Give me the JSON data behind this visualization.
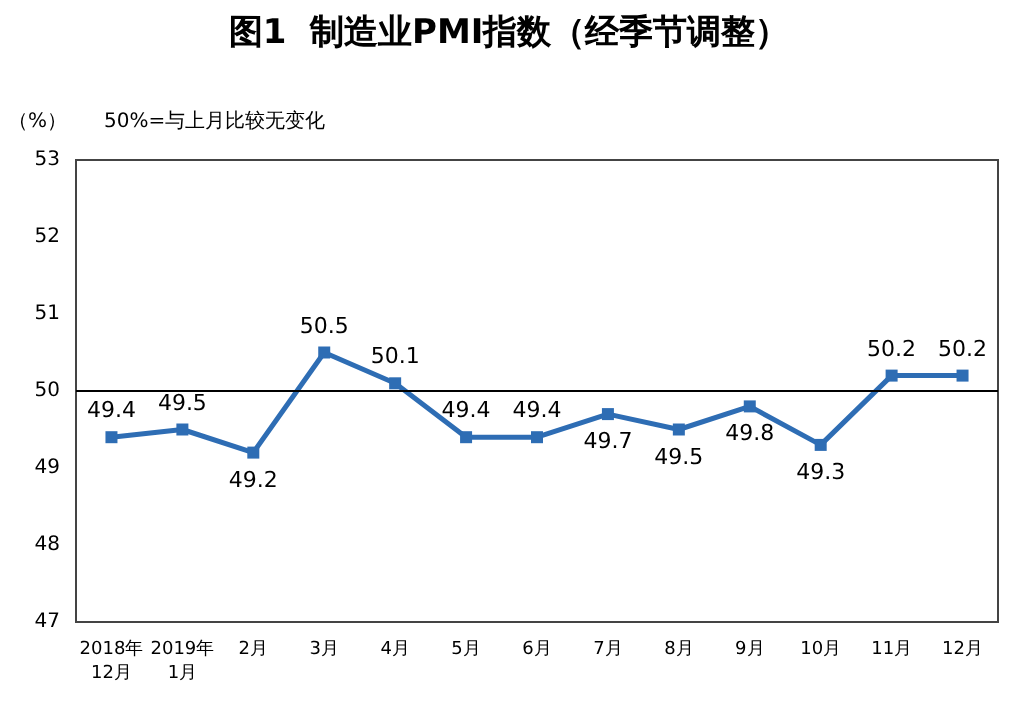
{
  "chart_data": {
    "type": "line",
    "title": "图1  制造业PMI指数（经季节调整）",
    "ylabel": "（%）",
    "annotations": [
      "50%=与上月比较无变化"
    ],
    "categories": [
      "2018年\n12月",
      "2019年\n1月",
      "2月",
      "3月",
      "4月",
      "5月",
      "6月",
      "7月",
      "8月",
      "9月",
      "10月",
      "11月",
      "12月"
    ],
    "series": [
      {
        "color": "#2e6db4",
        "values": [
          49.4,
          49.5,
          49.2,
          50.5,
          50.1,
          49.4,
          49.4,
          49.7,
          49.5,
          49.8,
          49.3,
          50.2,
          50.2
        ]
      }
    ],
    "ylim": [
      47,
      53
    ],
    "yticks": [
      47,
      48,
      49,
      50,
      51,
      52,
      53
    ],
    "ref_lines": [
      {
        "axis": "y",
        "value": 50,
        "color": "#000000"
      }
    ],
    "data_labels": true,
    "marker": "square",
    "line_style": "solid"
  }
}
